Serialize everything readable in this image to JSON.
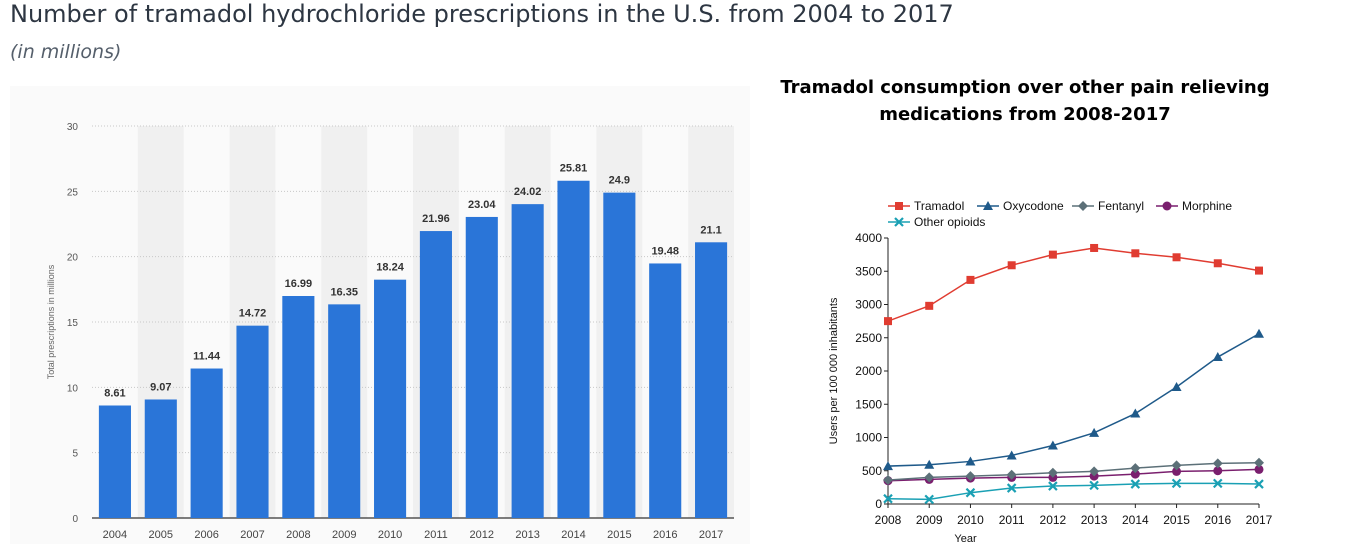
{
  "page": {
    "title": "Number of tramadol hydrochloride prescriptions in the U.S. from 2004 to 2017",
    "subtitle": "(in millions)"
  },
  "chart_data": [
    {
      "type": "bar",
      "ylabel": "Total prescriptions in millions",
      "xlabel": "",
      "ylim": [
        0,
        30
      ],
      "yticks": [
        0,
        5,
        10,
        15,
        20,
        25,
        30
      ],
      "grid": true,
      "bar_color": "#2a75d8",
      "categories": [
        "2004",
        "2005",
        "2006",
        "2007",
        "2008",
        "2009",
        "2010",
        "2011",
        "2012",
        "2013",
        "2014",
        "2015",
        "2016",
        "2017"
      ],
      "values": [
        8.61,
        9.07,
        11.44,
        14.72,
        16.99,
        16.35,
        18.24,
        21.96,
        23.04,
        24.02,
        25.81,
        24.9,
        19.48,
        21.1
      ],
      "value_labels": [
        "8.61",
        "9.07",
        "11.44",
        "14.72",
        "16.99",
        "16.35",
        "18.24",
        "21.96",
        "23.04",
        "24.02",
        "25.81",
        "24.9",
        "19.48",
        "21.1"
      ]
    },
    {
      "type": "line",
      "title": "Tramadol consumption over other pain relieving medications from 2008-2017",
      "xlabel": "Year",
      "ylabel": "Users per 100 000 inhabitants",
      "ylim": [
        0,
        4000
      ],
      "yticks": [
        0,
        500,
        1000,
        1500,
        2000,
        2500,
        3000,
        3500,
        4000
      ],
      "ytick_labels": [
        "0",
        "500",
        "1000",
        "1500",
        "2000",
        "2500",
        "3000",
        "3500",
        "4000"
      ],
      "legend_position": "top",
      "x": [
        "2008",
        "2009",
        "2010",
        "2011",
        "2012",
        "2013",
        "2014",
        "2015",
        "2016",
        "2017"
      ],
      "series": [
        {
          "name": "Tramadol",
          "color": "#e03c31",
          "marker": "square",
          "values": [
            2750,
            2980,
            3370,
            3590,
            3750,
            3850,
            3770,
            3710,
            3620,
            3510
          ]
        },
        {
          "name": "Oxycodone",
          "color": "#1f5a8a",
          "marker": "triangle",
          "values": [
            570,
            590,
            640,
            730,
            880,
            1070,
            1360,
            1760,
            2210,
            2560
          ]
        },
        {
          "name": "Fentanyl",
          "color": "#5c7078",
          "marker": "diamond",
          "values": [
            360,
            400,
            420,
            440,
            470,
            490,
            540,
            580,
            610,
            620
          ]
        },
        {
          "name": "Morphine",
          "color": "#7a1f6e",
          "marker": "circle",
          "values": [
            350,
            370,
            390,
            400,
            400,
            420,
            450,
            490,
            500,
            520
          ]
        },
        {
          "name": "Other opioids",
          "color": "#1aa0b4",
          "marker": "x",
          "values": [
            80,
            70,
            170,
            240,
            270,
            280,
            300,
            310,
            310,
            300
          ]
        }
      ]
    }
  ]
}
